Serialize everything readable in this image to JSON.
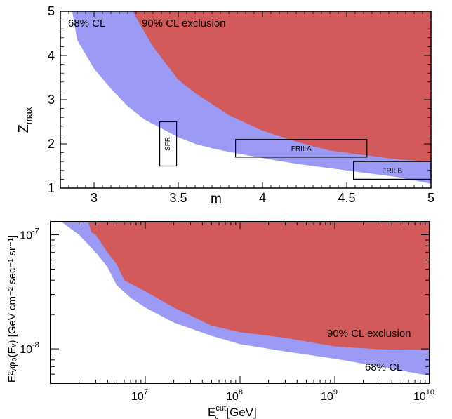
{
  "chart_data": [
    {
      "type": "area",
      "xlabel": "m",
      "ylabel_main": "Z",
      "ylabel_sub": "max",
      "xlim": [
        2.8,
        5.0
      ],
      "ylim": [
        1,
        5
      ],
      "xticks": [
        "3",
        "3.5",
        "4",
        "4.5",
        "5"
      ],
      "yticks": [
        "1",
        "2",
        "3",
        "4",
        "5"
      ],
      "colors": {
        "cl68": "#9b9bf5",
        "excl90": "#d25a5a",
        "frame": "#000000"
      },
      "series": [
        {
          "name": "68% CL",
          "boundary": {
            "x": [
              2.87,
              2.9,
              3.0,
              3.1,
              3.2,
              3.3,
              3.4,
              3.5,
              3.6,
              3.7,
              3.8,
              4.0,
              4.2,
              4.4,
              4.6,
              4.8,
              5.0
            ],
            "y": [
              5.0,
              4.35,
              3.7,
              3.25,
              2.85,
              2.55,
              2.35,
              2.15,
              2.0,
              1.9,
              1.82,
              1.68,
              1.55,
              1.45,
              1.35,
              1.25,
              1.1
            ]
          }
        },
        {
          "name": "90% CL exclusion",
          "boundary": {
            "x": [
              3.23,
              3.28,
              3.35,
              3.42,
              3.5,
              3.6,
              3.8,
              4.0,
              4.2,
              4.4,
              4.6,
              4.8,
              5.0
            ],
            "y": [
              5.0,
              4.65,
              4.2,
              3.85,
              3.45,
              3.15,
              2.65,
              2.3,
              2.05,
              1.85,
              1.75,
              1.65,
              1.6
            ]
          }
        }
      ],
      "boxes": [
        {
          "label": "SFR",
          "x": [
            3.39,
            3.49
          ],
          "y": [
            1.5,
            2.5
          ]
        },
        {
          "label": "FRII-A",
          "x": [
            3.84,
            4.62
          ],
          "y": [
            1.7,
            2.1
          ]
        },
        {
          "label": "FRII-B",
          "x": [
            4.54,
            5.0
          ],
          "y": [
            1.2,
            1.6
          ]
        }
      ],
      "legend_in_plot": {
        "cl68": "68% CL",
        "excl90": "90% CL exclusion"
      }
    },
    {
      "type": "area",
      "xlabel_main": "E",
      "xlabel_sup": "cut",
      "xlabel_sub": "ν",
      "xlabel_unit": " [GeV]",
      "ylabel_text": "E²ᵥφ₀(Eᵥ) [GeV cm⁻² sec⁻¹ sr⁻¹]",
      "x_scale": "log",
      "y_scale": "log",
      "xlim": [
        1000000,
        10000000000
      ],
      "ylim": [
        5e-09,
        1.3e-07
      ],
      "xticks": [
        {
          "value": 10000000,
          "base": "10",
          "exp": "7"
        },
        {
          "value": 100000000,
          "base": "10",
          "exp": "8"
        },
        {
          "value": 1000000000,
          "base": "10",
          "exp": "9"
        },
        {
          "value": 10000000000,
          "base": "10",
          "exp": "10"
        }
      ],
      "yticks": [
        {
          "value": 1e-08,
          "base": "10",
          "exp": "-8"
        },
        {
          "value": 1e-07,
          "base": "10",
          "exp": "-7"
        }
      ],
      "colors": {
        "cl68": "#9b9bf5",
        "excl90": "#d25a5a",
        "frame": "#000000"
      },
      "series": [
        {
          "name": "68% CL",
          "boundary": {
            "x": [
              1300000,
              2000000,
              3000000,
              4000000,
              5000000,
              7000000,
              10000000,
              20000000,
              50000000,
              100000000,
              300000000,
              1000000000,
              3000000000,
              10000000000
            ],
            "y": [
              1.3e-07,
              1e-07,
              7e-08,
              5.2e-08,
              3.6e-08,
              2.8e-08,
              2.3e-08,
              1.7e-08,
              1.3e-08,
              1.1e-08,
              9.5e-09,
              8.2e-09,
              7e-09,
              5.8e-09
            ]
          }
        },
        {
          "name": "90% CL exclusion",
          "boundary": {
            "x": [
              2500000,
              2700000,
              3000000,
              4000000,
              5000000,
              6000000,
              10000000,
              20000000,
              50000000,
              100000000,
              300000000,
              1000000000,
              3000000000,
              10000000000
            ],
            "y": [
              1.3e-07,
              1.05e-07,
              1e-07,
              7e-08,
              5.5e-08,
              4e-08,
              3.2e-08,
              2.3e-08,
              1.6e-08,
              1.4e-08,
              1.25e-08,
              1.05e-08,
              9.9e-09,
              9.8e-09
            ]
          }
        }
      ],
      "legend_in_plot": {
        "cl68": "68% CL",
        "excl90": "90% CL exclusion"
      }
    }
  ]
}
